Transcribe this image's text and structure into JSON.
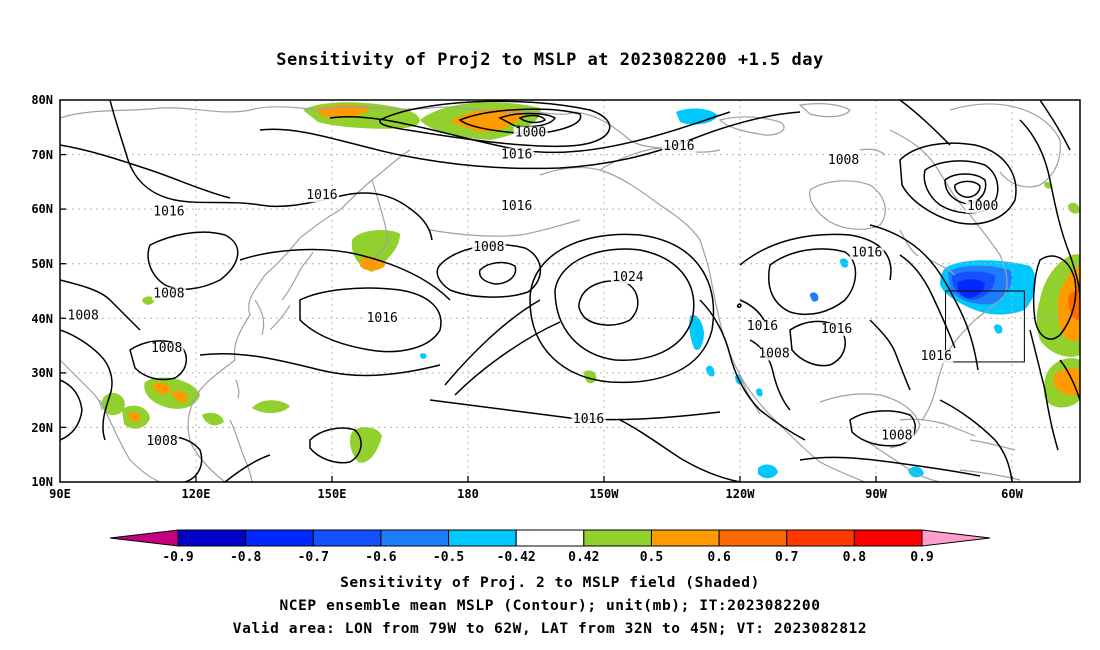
{
  "title": "Sensitivity of Proj2 to MSLP at 2023082200 +1.5 day",
  "map": {
    "lon_labels": [
      "90E",
      "120E",
      "150E",
      "180",
      "150W",
      "120W",
      "90W",
      "60W"
    ],
    "lat_labels": [
      "80N",
      "70N",
      "60N",
      "50N",
      "40N",
      "30N",
      "20N",
      "10N"
    ],
    "isobar_labels": [
      {
        "text": "1000",
        "lon": -168.5,
        "lat": 73.5
      },
      {
        "text": "1016",
        "lon": -171.5,
        "lat": 69.5
      },
      {
        "text": "1016",
        "lon": -136.5,
        "lat": 71
      },
      {
        "text": "1008",
        "lon": -101,
        "lat": 68.5
      },
      {
        "text": "1000",
        "lon": -71,
        "lat": 60
      },
      {
        "text": "1016",
        "lon": 146.5,
        "lat": 62
      },
      {
        "text": "1016",
        "lon": 113.5,
        "lat": 59
      },
      {
        "text": "1016",
        "lon": -171.5,
        "lat": 60
      },
      {
        "text": "1008",
        "lon": -177.5,
        "lat": 52.5
      },
      {
        "text": "1016",
        "lon": -96,
        "lat": 51.5
      },
      {
        "text": "1008",
        "lon": 113.5,
        "lat": 44
      },
      {
        "text": "1024",
        "lon": -147.5,
        "lat": 47
      },
      {
        "text": "1008",
        "lon": 95,
        "lat": 40
      },
      {
        "text": "1016",
        "lon": 159.5,
        "lat": 39.5
      },
      {
        "text": "1016",
        "lon": -118.5,
        "lat": 38
      },
      {
        "text": "1016",
        "lon": -102.5,
        "lat": 37.5
      },
      {
        "text": "1008",
        "lon": 113,
        "lat": 34
      },
      {
        "text": "1008",
        "lon": -116,
        "lat": 33
      },
      {
        "text": "1016",
        "lon": -81,
        "lat": 32.5
      },
      {
        "text": "1016",
        "lon": -156,
        "lat": 21
      },
      {
        "text": "1008",
        "lon": 112,
        "lat": 17
      },
      {
        "text": "1008",
        "lon": -89.5,
        "lat": 18
      }
    ],
    "valid_box": {
      "lon_from": -79,
      "lon_to": -62,
      "lat_from": 32,
      "lat_to": 45
    }
  },
  "colorbar": {
    "labels": [
      "-0.9",
      "-0.8",
      "-0.7",
      "-0.6",
      "-0.5",
      "-0.42",
      "0.42",
      "0.5",
      "0.6",
      "0.7",
      "0.8",
      "0.9"
    ],
    "colors": [
      "#c40080",
      "#0000c8",
      "#0028ff",
      "#1450ff",
      "#1e7cff",
      "#00c8ff",
      "#ffffff",
      "#92d02e",
      "#ff9a00",
      "#ff6a00",
      "#ff3a00",
      "#ff0000",
      "#ff9ecb"
    ]
  },
  "footer": {
    "line1": "Sensitivity of Proj. 2 to MSLP field (Shaded)",
    "line2": "NCEP ensemble mean MSLP (Contour); unit(mb); IT:2023082200",
    "line3": "Valid area: LON from 79W to 62W, LAT from 32N to 45N; VT: 2023082812"
  },
  "colors": {
    "isobar": "#000000",
    "coast": "#a0a0a0",
    "grid": "#b4b4b4"
  }
}
